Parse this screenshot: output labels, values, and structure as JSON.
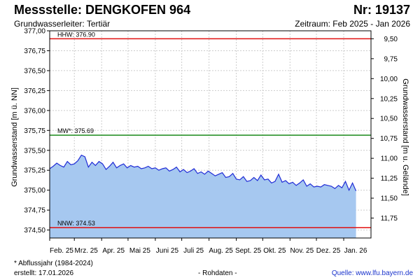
{
  "header": {
    "title": "Messstelle: DENGKOFEN 964",
    "number": "Nr: 19137",
    "subtitle": "Grundwasserleiter: Tertiär",
    "period": "Zeitraum: Feb 2025 - Jan 2026"
  },
  "footer": {
    "footnote": "* Abflussjahr (1984-2024)",
    "created": "erstellt:  17.01.2026",
    "rawdata": "- Rohdaten -",
    "source": "Quelle:  www.lfu.bayern.de"
  },
  "colors": {
    "line": "#1f2bd6",
    "fill": "#a6c8f0",
    "hhw": "#e01010",
    "nnw": "#e01010",
    "mw": "#1a8a1a",
    "grid": "#cccccc"
  },
  "chart_data": {
    "type": "area",
    "ylabel_left": "Grundwasserstand [m ü. NN]",
    "ylabel_right": "Grundwasserstand [m u. Gelände]",
    "ylim": [
      374.4,
      377.0
    ],
    "yticks_left": [
      "377,00",
      "376,75",
      "376,50",
      "376,25",
      "376,00",
      "375,75",
      "375,50",
      "375,25",
      "375,00",
      "374,75",
      "374,50"
    ],
    "yticks_right": [
      "9,50",
      "9,75",
      "10,00",
      "10,25",
      "10,50",
      "10,75",
      "11,00",
      "11,25",
      "11,50",
      "11,75"
    ],
    "right_axis_offset": 386.4,
    "xlim": [
      "2025-02-01",
      "2026-02-01"
    ],
    "xticks": [
      {
        "date": "2025-02-01",
        "label": "Feb. 25"
      },
      {
        "date": "2025-03-01",
        "label": "Mrz. 25"
      },
      {
        "date": "2025-04-01",
        "label": "Apr. 25"
      },
      {
        "date": "2025-05-01",
        "label": "Mai 25"
      },
      {
        "date": "2025-06-01",
        "label": "Juni 25"
      },
      {
        "date": "2025-07-01",
        "label": "Juli 25"
      },
      {
        "date": "2025-08-01",
        "label": "Aug. 25"
      },
      {
        "date": "2025-09-01",
        "label": "Sept. 25"
      },
      {
        "date": "2025-10-01",
        "label": "Okt. 25"
      },
      {
        "date": "2025-11-01",
        "label": "Nov. 25"
      },
      {
        "date": "2025-12-01",
        "label": "Dez. 25"
      },
      {
        "date": "2026-01-01",
        "label": "Jan. 26"
      }
    ],
    "reference_lines": [
      {
        "name": "HHW",
        "label": "HHW: 376.90",
        "value": 376.9,
        "color": "#e01010"
      },
      {
        "name": "MW",
        "label": "MW*: 375.69",
        "value": 375.69,
        "color": "#1a8a1a"
      },
      {
        "name": "NNW",
        "label": "NNW: 374.53",
        "value": 374.53,
        "color": "#e01010"
      }
    ],
    "series": [
      {
        "x": [
          "2025-02-01",
          "2025-02-05",
          "2025-02-09",
          "2025-02-13",
          "2025-02-17",
          "2025-02-21",
          "2025-02-25",
          "2025-03-01",
          "2025-03-05",
          "2025-03-09",
          "2025-03-13",
          "2025-03-17",
          "2025-03-21",
          "2025-03-25",
          "2025-03-29",
          "2025-04-02",
          "2025-04-06",
          "2025-04-10",
          "2025-04-14",
          "2025-04-18",
          "2025-04-22",
          "2025-04-26",
          "2025-04-30",
          "2025-05-04",
          "2025-05-08",
          "2025-05-12",
          "2025-05-16",
          "2025-05-20",
          "2025-05-24",
          "2025-05-28",
          "2025-06-01",
          "2025-06-05",
          "2025-06-09",
          "2025-06-13",
          "2025-06-17",
          "2025-06-21",
          "2025-06-25",
          "2025-06-29",
          "2025-07-03",
          "2025-07-07",
          "2025-07-11",
          "2025-07-15",
          "2025-07-19",
          "2025-07-23",
          "2025-07-27",
          "2025-07-31",
          "2025-08-04",
          "2025-08-08",
          "2025-08-12",
          "2025-08-16",
          "2025-08-20",
          "2025-08-24",
          "2025-08-28",
          "2025-09-01",
          "2025-09-05",
          "2025-09-09",
          "2025-09-13",
          "2025-09-17",
          "2025-09-21",
          "2025-09-25",
          "2025-09-29",
          "2025-10-03",
          "2025-10-07",
          "2025-10-11",
          "2025-10-15",
          "2025-10-19",
          "2025-10-23",
          "2025-10-27",
          "2025-10-31",
          "2025-11-04",
          "2025-11-08",
          "2025-11-12",
          "2025-11-16",
          "2025-11-20",
          "2025-11-24",
          "2025-11-28",
          "2025-12-02",
          "2025-12-06",
          "2025-12-10",
          "2025-12-14",
          "2025-12-18",
          "2025-12-22",
          "2025-12-26",
          "2025-12-30",
          "2026-01-03",
          "2026-01-07",
          "2026-01-11",
          "2026-01-15"
        ],
        "values": [
          375.27,
          375.3,
          375.34,
          375.31,
          375.29,
          375.36,
          375.32,
          375.33,
          375.37,
          375.44,
          375.42,
          375.29,
          375.35,
          375.31,
          375.36,
          375.33,
          375.26,
          375.3,
          375.35,
          375.28,
          375.31,
          375.33,
          375.28,
          375.31,
          375.29,
          375.3,
          375.27,
          375.28,
          375.3,
          375.27,
          375.28,
          375.25,
          375.27,
          375.28,
          375.24,
          375.26,
          375.29,
          375.23,
          375.26,
          375.22,
          375.24,
          375.27,
          375.21,
          375.23,
          375.2,
          375.24,
          375.21,
          375.18,
          375.2,
          375.22,
          375.16,
          375.17,
          375.21,
          375.14,
          375.13,
          375.17,
          375.11,
          375.12,
          375.16,
          375.12,
          375.19,
          375.13,
          375.14,
          375.09,
          375.11,
          375.2,
          375.1,
          375.12,
          375.08,
          375.1,
          375.06,
          375.09,
          375.13,
          375.05,
          375.08,
          375.04,
          375.05,
          375.04,
          375.07,
          375.06,
          375.05,
          375.02,
          375.06,
          375.03,
          375.11,
          375.0,
          375.09,
          374.99
        ]
      }
    ],
    "grid": true
  }
}
